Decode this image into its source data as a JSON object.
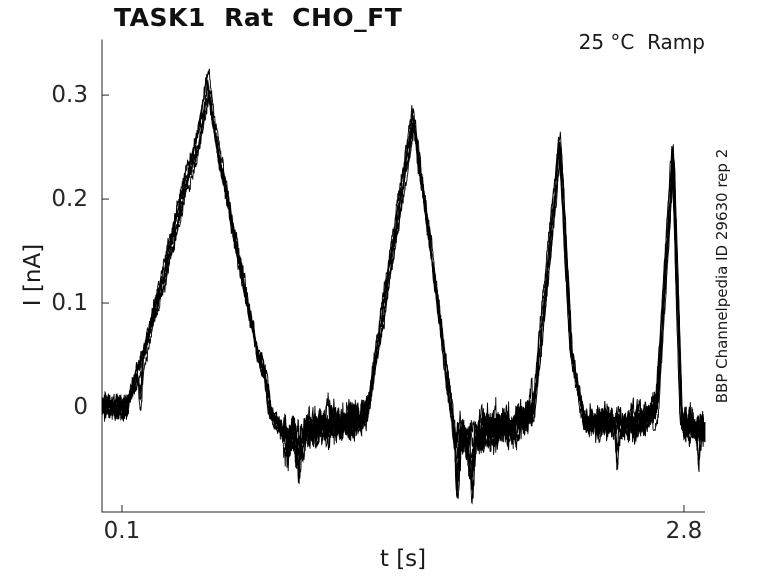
{
  "page": {
    "title": "TASK1  Rat  CHO_FT",
    "condition_annotation": "25 °C  Ramp",
    "side_annotation": "BBP Channelpedia ID 29630 rep 2"
  },
  "chart_data": {
    "type": "line",
    "title": "TASK1  Rat  CHO_FT",
    "subtitle": "25 °C  Ramp",
    "watermark": "BBP Channelpedia ID 29630 rep 2",
    "xlabel": "t [s]",
    "ylabel": "I [nA]",
    "xlim": [
      0.004,
      2.901
    ],
    "ylim": [
      -0.101,
      0.353
    ],
    "xticks": {
      "values": [
        0.1,
        2.8
      ],
      "labels": [
        "0.1",
        "2.8"
      ]
    },
    "yticks": {
      "values": [
        0,
        0.1,
        0.2,
        0.3
      ],
      "labels": [
        "0",
        "0.1",
        "0.2",
        "0.3"
      ]
    },
    "grid": false,
    "legend": null,
    "trace_color": "#000000",
    "axis_color": "#262626",
    "n_sweeps": 8,
    "description": "Overlaid noisy current sweeps (ramp protocol): four triangular current peaks of decreasing width and amplitude, with noisy undershoot below 0 nA between peaks.",
    "peaks": [
      {
        "t_s": 0.51,
        "I_nA": 0.31
      },
      {
        "t_s": 1.5,
        "I_nA": 0.28
      },
      {
        "t_s": 2.2,
        "I_nA": 0.255
      },
      {
        "t_s": 2.75,
        "I_nA": 0.245
      }
    ],
    "envelope": [
      [
        0.004,
        0.0
      ],
      [
        0.124,
        0.0
      ],
      [
        0.2,
        0.05
      ],
      [
        0.3,
        0.125
      ],
      [
        0.4,
        0.21
      ],
      [
        0.47,
        0.26
      ],
      [
        0.513,
        0.311
      ],
      [
        0.555,
        0.255
      ],
      [
        0.65,
        0.155
      ],
      [
        0.75,
        0.052
      ],
      [
        0.787,
        0.03
      ],
      [
        0.815,
        -0.005
      ],
      [
        0.874,
        -0.025
      ],
      [
        0.95,
        -0.025
      ],
      [
        1.1,
        -0.016
      ],
      [
        1.25,
        -0.013
      ],
      [
        1.285,
        0.0
      ],
      [
        1.32,
        0.05
      ],
      [
        1.5,
        0.28
      ],
      [
        1.695,
        -0.022
      ],
      [
        1.8,
        -0.027
      ],
      [
        1.95,
        -0.018
      ],
      [
        2.045,
        -0.012
      ],
      [
        2.08,
        0.0
      ],
      [
        2.205,
        0.255
      ],
      [
        2.26,
        0.05
      ],
      [
        2.325,
        -0.015
      ],
      [
        2.45,
        -0.016
      ],
      [
        2.6,
        -0.013
      ],
      [
        2.67,
        0.0
      ],
      [
        2.748,
        0.244
      ],
      [
        2.788,
        -0.015
      ],
      [
        2.85,
        -0.02
      ],
      [
        2.901,
        -0.02
      ]
    ],
    "base_noise_sd": 0.004,
    "noise_windows": [
      {
        "t0": 0.004,
        "t1": 0.124,
        "sd": 0.006
      },
      {
        "t0": 0.874,
        "t1": 1.28,
        "sd": 0.008
      },
      {
        "t0": 1.695,
        "t1": 2.075,
        "sd": 0.009
      },
      {
        "t0": 2.325,
        "t1": 2.665,
        "sd": 0.007
      },
      {
        "t0": 2.788,
        "t1": 2.901,
        "sd": 0.008
      }
    ],
    "dips": [
      {
        "t": 0.19,
        "depth": -0.045,
        "w": 0.01
      },
      {
        "t": 0.9,
        "depth": -0.035,
        "w": 0.012
      },
      {
        "t": 0.95,
        "depth": -0.028,
        "w": 0.02
      },
      {
        "t": 1.71,
        "depth": -0.042,
        "w": 0.012
      },
      {
        "t": 1.78,
        "depth": -0.03,
        "w": 0.018
      },
      {
        "t": 2.48,
        "depth": -0.04,
        "w": 0.008
      },
      {
        "t": 2.82,
        "depth": -0.04,
        "w": 0.01
      },
      {
        "t": 2.87,
        "depth": -0.03,
        "w": 0.009
      }
    ]
  }
}
